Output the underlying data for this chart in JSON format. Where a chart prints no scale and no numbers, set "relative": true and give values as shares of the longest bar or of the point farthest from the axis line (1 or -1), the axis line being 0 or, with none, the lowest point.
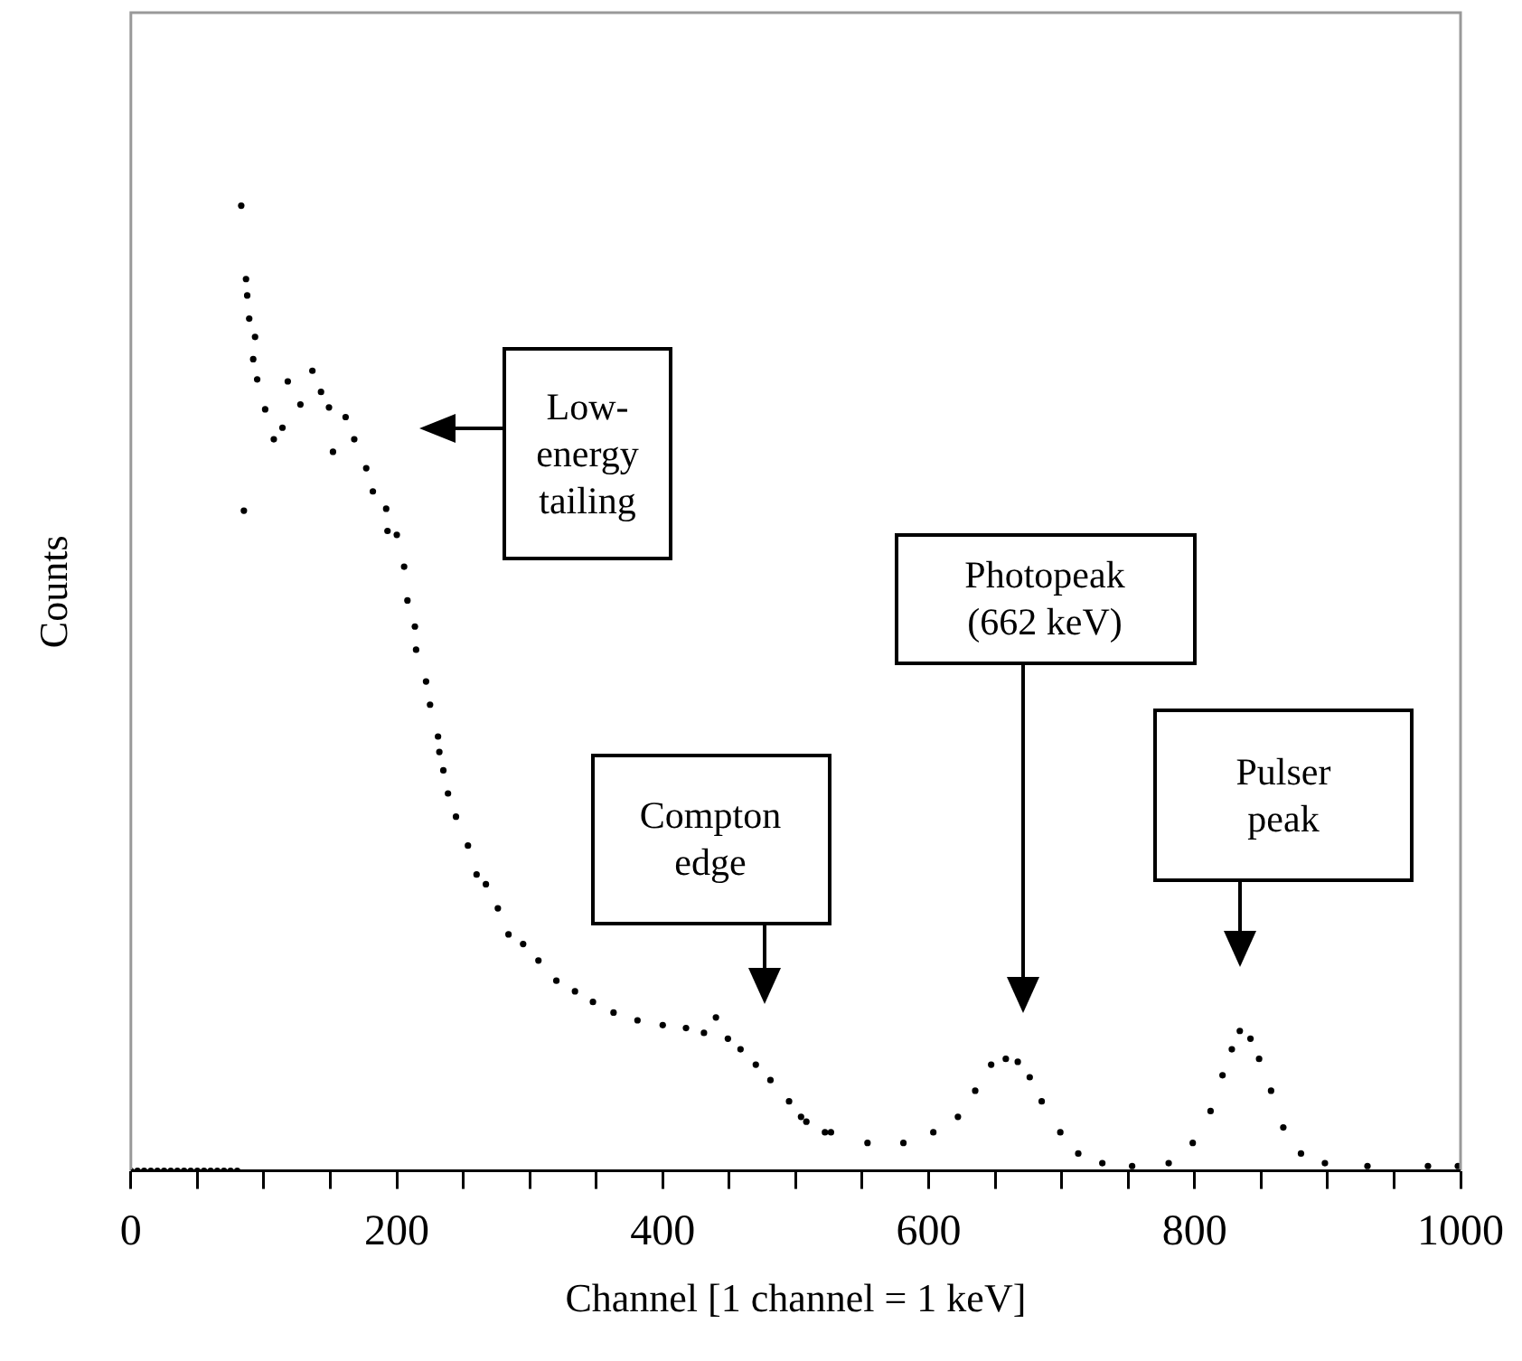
{
  "chart_data": {
    "type": "scatter",
    "xlabel": "Channel [1 channel = 1 keV]",
    "ylabel": "Counts",
    "relative": true,
    "marker": "circle",
    "xlim": [
      0,
      1000
    ],
    "xticks": [
      0,
      {
        "value": 50,
        "label": null
      },
      {
        "value": 100,
        "label": null
      },
      {
        "value": 150,
        "label": null
      },
      200,
      {
        "value": 250,
        "label": null
      },
      {
        "value": 300,
        "label": null
      },
      {
        "value": 350,
        "label": null
      },
      400,
      {
        "value": 450,
        "label": null
      },
      {
        "value": 500,
        "label": null
      },
      {
        "value": 550,
        "label": null
      },
      600,
      {
        "value": 650,
        "label": null
      },
      {
        "value": 700,
        "label": null
      },
      {
        "value": 750,
        "label": null
      },
      800,
      {
        "value": 850,
        "label": null
      },
      {
        "value": 900,
        "label": null
      },
      {
        "value": 950,
        "label": null
      },
      1000
    ],
    "series": [
      {
        "color": "#000000",
        "x": [
          0,
          5,
          10,
          15,
          20,
          25,
          30,
          35,
          40,
          45,
          50,
          55,
          60,
          65,
          70,
          75,
          80,
          83,
          85,
          86.6,
          87.5,
          89,
          92,
          93.4,
          95,
          101,
          107.5,
          114,
          118,
          127.5,
          136.5,
          143,
          149,
          152,
          161.5,
          168,
          177,
          182,
          192,
          193,
          200,
          205.5,
          208,
          213.6,
          214.5,
          222,
          225,
          231,
          232,
          235,
          238.5,
          244.5,
          253.5,
          260,
          267,
          276,
          284,
          295,
          306.5,
          320,
          334,
          347.5,
          363,
          381,
          400,
          417.5,
          431,
          440,
          449,
          458.5,
          470,
          481,
          495,
          504,
          508,
          522,
          526.5,
          554,
          581,
          603.5,
          622,
          635,
          647,
          658,
          667,
          676,
          685,
          699,
          712.5,
          730.6,
          753,
          780.5,
          798.6,
          812,
          821,
          828,
          834,
          842,
          848.5,
          857.5,
          866.7,
          880,
          898,
          930,
          975.5,
          998
        ],
        "values": [
          0,
          0,
          0,
          0,
          0,
          0,
          0,
          0,
          0,
          0,
          0,
          0,
          0,
          0,
          0,
          0,
          0,
          1.0,
          0.684,
          0.924,
          0.907,
          0.883,
          0.841,
          0.864,
          0.82,
          0.789,
          0.758,
          0.77,
          0.818,
          0.794,
          0.829,
          0.807,
          0.791,
          0.745,
          0.781,
          0.758,
          0.728,
          0.704,
          0.686,
          0.663,
          0.659,
          0.626,
          0.591,
          0.564,
          0.54,
          0.507,
          0.483,
          0.45,
          0.434,
          0.415,
          0.391,
          0.367,
          0.337,
          0.307,
          0.297,
          0.272,
          0.245,
          0.235,
          0.218,
          0.197,
          0.186,
          0.175,
          0.164,
          0.156,
          0.151,
          0.148,
          0.143,
          0.159,
          0.137,
          0.126,
          0.11,
          0.094,
          0.072,
          0.056,
          0.051,
          0.04,
          0.04,
          0.029,
          0.029,
          0.04,
          0.056,
          0.083,
          0.11,
          0.116,
          0.113,
          0.097,
          0.072,
          0.04,
          0.018,
          0.008,
          0.005,
          0.008,
          0.029,
          0.062,
          0.099,
          0.126,
          0.145,
          0.137,
          0.116,
          0.083,
          0.045,
          0.018,
          0.008,
          0.005,
          0.005,
          0.005
        ]
      }
    ],
    "annotations": [
      "Low-energy tailing",
      "Compton edge",
      "Photopeak (662 keV)",
      "Pulser peak"
    ]
  }
}
